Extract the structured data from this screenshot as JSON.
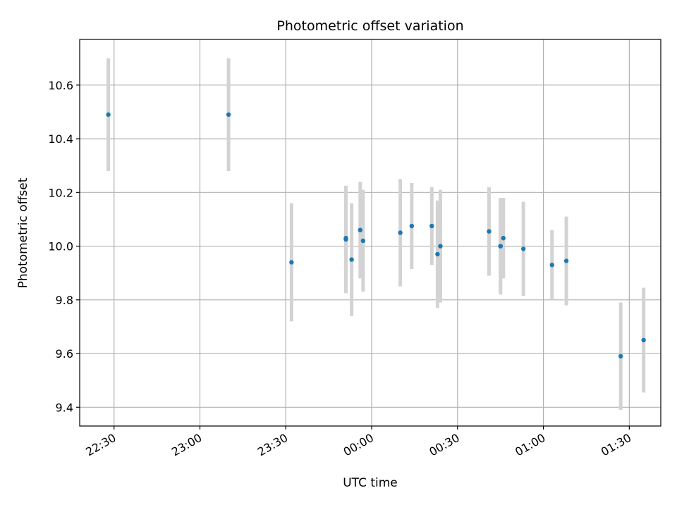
{
  "chart_data": {
    "type": "scatter",
    "title": "Photometric offset variation",
    "xlabel": "UTC time",
    "ylabel": "Photometric offset",
    "x_tick_labels": [
      "22:30",
      "23:00",
      "23:30",
      "00:00",
      "00:30",
      "01:00",
      "01:30"
    ],
    "y_tick_labels": [
      "9.4",
      "9.6",
      "9.8",
      "10.0",
      "10.2",
      "10.4",
      "10.6"
    ],
    "x_range": [
      "22:18",
      "01:41"
    ],
    "ylim": [
      9.33,
      10.77
    ],
    "grid": true,
    "colors": {
      "point": "#1f77b4",
      "errorbar": "#d3d3d3"
    },
    "series": [
      {
        "points": [
          {
            "x": "22:28",
            "y": 10.49,
            "err": 0.21
          },
          {
            "x": "23:10",
            "y": 10.49,
            "err": 0.21
          },
          {
            "x": "23:32",
            "y": 9.94,
            "err": 0.22
          },
          {
            "x": "23:51",
            "y": 10.03,
            "err": 0.19
          },
          {
            "x": "23:51",
            "y": 10.025,
            "err": 0.2
          },
          {
            "x": "23:53",
            "y": 9.95,
            "err": 0.21
          },
          {
            "x": "23:56",
            "y": 10.06,
            "err": 0.18
          },
          {
            "x": "23:57",
            "y": 10.02,
            "err": 0.19
          },
          {
            "x": "00:10",
            "y": 10.05,
            "err": 0.2
          },
          {
            "x": "00:14",
            "y": 10.075,
            "err": 0.16
          },
          {
            "x": "00:21",
            "y": 10.075,
            "err": 0.145
          },
          {
            "x": "00:23",
            "y": 9.97,
            "err": 0.2
          },
          {
            "x": "00:24",
            "y": 10.0,
            "err": 0.21
          },
          {
            "x": "00:41",
            "y": 10.055,
            "err": 0.165
          },
          {
            "x": "00:45",
            "y": 10.0,
            "err": 0.18
          },
          {
            "x": "00:45",
            "y": 10.0,
            "err": 0.17
          },
          {
            "x": "00:46",
            "y": 10.03,
            "err": 0.15
          },
          {
            "x": "00:53",
            "y": 9.99,
            "err": 0.175
          },
          {
            "x": "01:03",
            "y": 9.93,
            "err": 0.13
          },
          {
            "x": "01:08",
            "y": 9.945,
            "err": 0.165
          },
          {
            "x": "01:27",
            "y": 9.59,
            "err": 0.2
          },
          {
            "x": "01:35",
            "y": 9.65,
            "err": 0.195
          }
        ]
      }
    ]
  }
}
